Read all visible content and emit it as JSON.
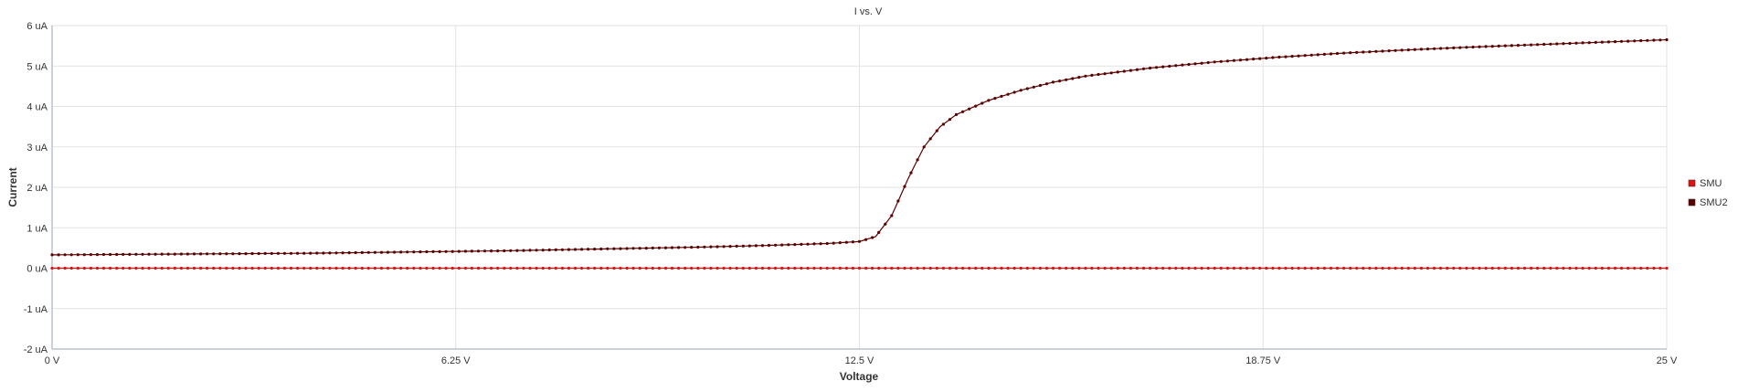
{
  "chart_data": {
    "type": "line",
    "title": "I vs. V",
    "xlabel": "Voltage",
    "ylabel": "Current",
    "xlim": [
      0,
      25
    ],
    "ylim": [
      -2,
      6
    ],
    "x_ticks": [
      {
        "value": 0,
        "label": "0 V"
      },
      {
        "value": 6.25,
        "label": "6.25 V"
      },
      {
        "value": 12.5,
        "label": "12.5 V"
      },
      {
        "value": 18.75,
        "label": "18.75 V"
      },
      {
        "value": 25,
        "label": "25 V"
      }
    ],
    "y_ticks": [
      {
        "value": -2,
        "label": "-2 uA"
      },
      {
        "value": -1,
        "label": "-1 uA"
      },
      {
        "value": 0,
        "label": "0 uA"
      },
      {
        "value": 1,
        "label": "1 uA"
      },
      {
        "value": 2,
        "label": "2 uA"
      },
      {
        "value": 3,
        "label": "3 uA"
      },
      {
        "value": 4,
        "label": "4 uA"
      },
      {
        "value": 5,
        "label": "5 uA"
      },
      {
        "value": 6,
        "label": "6 uA"
      }
    ],
    "grid": true,
    "legend_position": "right",
    "series": [
      {
        "name": "SMU",
        "color": "#e01010",
        "x": [
          0,
          1,
          2,
          3,
          4,
          5,
          6,
          7,
          8,
          9,
          10,
          11,
          12,
          13,
          14,
          15,
          16,
          17,
          18,
          19,
          20,
          21,
          22,
          23,
          24,
          25
        ],
        "y": [
          0,
          0,
          0,
          0,
          0,
          0,
          0,
          0,
          0,
          0,
          0,
          0,
          0,
          0,
          0,
          0,
          0,
          0,
          0,
          0,
          0,
          0,
          0,
          0,
          0,
          0
        ]
      },
      {
        "name": "SMU2",
        "color": "#5a0000",
        "x": [
          0,
          1,
          2,
          3,
          4,
          5,
          6,
          7,
          8,
          9,
          10,
          11,
          12,
          12.5,
          12.75,
          13,
          13.25,
          13.5,
          13.75,
          14,
          14.5,
          15,
          15.5,
          16,
          17,
          18,
          19,
          20,
          21,
          22,
          23,
          24,
          25
        ],
        "y": [
          0.33,
          0.34,
          0.35,
          0.36,
          0.37,
          0.39,
          0.41,
          0.43,
          0.46,
          0.49,
          0.52,
          0.56,
          0.61,
          0.66,
          0.78,
          1.3,
          2.2,
          3.0,
          3.5,
          3.8,
          4.15,
          4.4,
          4.6,
          4.75,
          4.95,
          5.1,
          5.22,
          5.32,
          5.4,
          5.47,
          5.53,
          5.59,
          5.65
        ]
      }
    ]
  }
}
